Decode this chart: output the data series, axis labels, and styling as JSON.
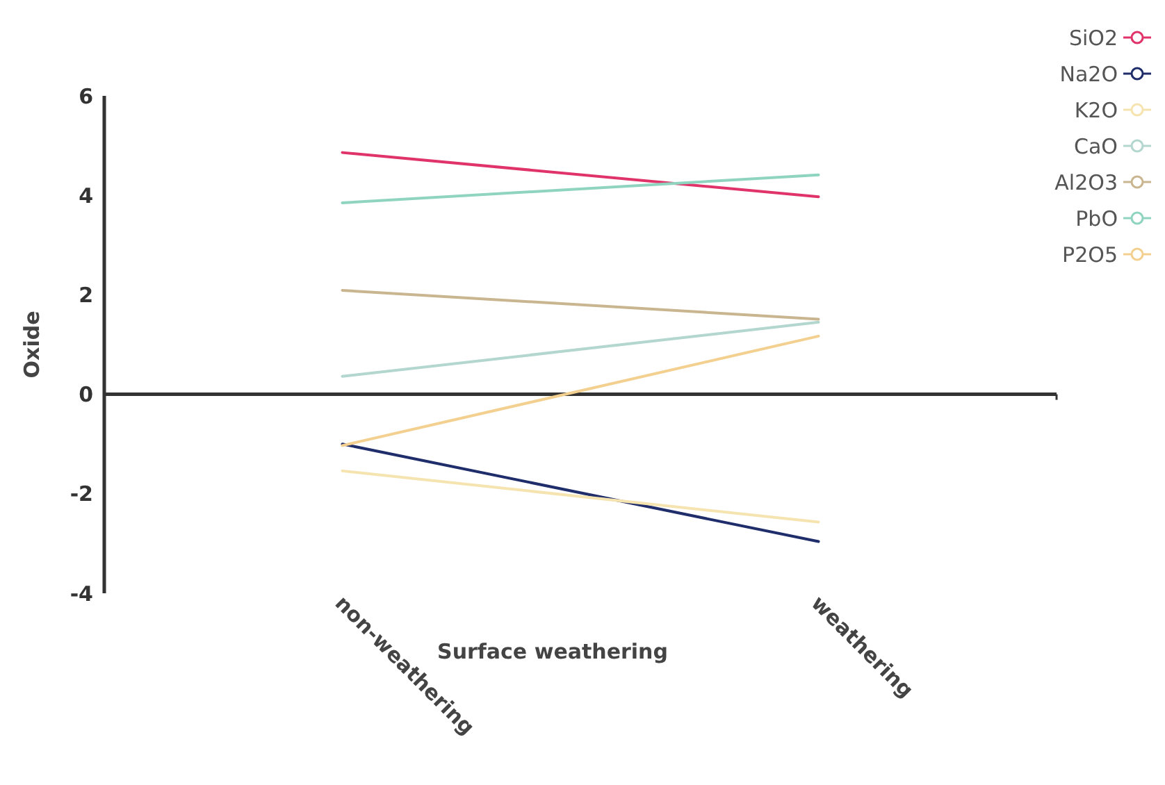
{
  "chart_data": {
    "type": "line",
    "xlabel": "Surface weathering",
    "ylabel": "Oxide",
    "categories": [
      "non-weathering",
      "weathering"
    ],
    "ylim": [
      -4,
      6
    ],
    "yticks": [
      -4,
      -2,
      0,
      2,
      4,
      6
    ],
    "legend": "top right",
    "marker": "none",
    "line_style": "solid",
    "series": [
      {
        "name": "SiO2",
        "color": "#e0336a",
        "values": [
          4.86,
          3.97
        ]
      },
      {
        "name": "Na2O",
        "color": "#1f2d6b",
        "values": [
          -1.0,
          -2.96
        ]
      },
      {
        "name": "K2O",
        "color": "#f5e3b0",
        "values": [
          -1.54,
          -2.57
        ]
      },
      {
        "name": "CaO",
        "color": "#b3d6cf",
        "values": [
          0.36,
          1.45
        ]
      },
      {
        "name": "Al2O3",
        "color": "#c9b58f",
        "values": [
          2.09,
          1.51
        ]
      },
      {
        "name": "PbO",
        "color": "#8fd4bf",
        "values": [
          3.85,
          4.41
        ]
      },
      {
        "name": "P2O5",
        "color": "#f3d08f",
        "values": [
          -1.03,
          1.17
        ]
      }
    ]
  }
}
